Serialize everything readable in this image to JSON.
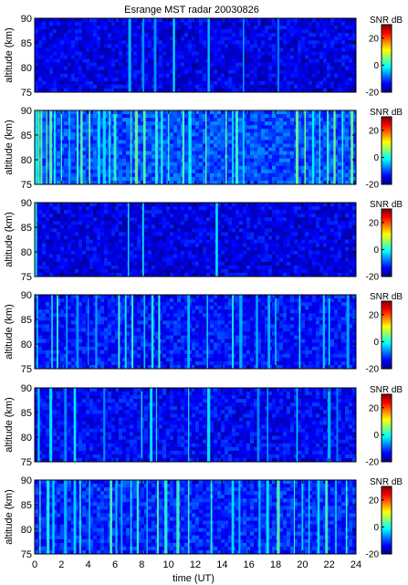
{
  "chart_data": {
    "type": "heatmap",
    "title": "Esrange MST radar 20030826",
    "xlabel": "time (UT)",
    "ylabel": "altitude (km)",
    "xlim": [
      0,
      24
    ],
    "ylim": [
      75,
      90
    ],
    "x_ticks": [
      0,
      2,
      4,
      6,
      8,
      10,
      12,
      14,
      16,
      18,
      20,
      22,
      24
    ],
    "y_ticks": [
      75,
      80,
      85,
      90
    ],
    "colorbar": {
      "label": "SNR dB",
      "range": [
        -20,
        30
      ],
      "ticks": [
        -20,
        0,
        20
      ],
      "colormap": "jet",
      "colors": [
        "#00007f",
        "#0000ff",
        "#007fff",
        "#00ffff",
        "#7fff7f",
        "#ffff00",
        "#ff7f00",
        "#ff0000",
        "#7f0000"
      ]
    },
    "panels": [
      {
        "panel": 1,
        "background_snr_db": -15,
        "spike_times_ut": [
          7.1,
          8.1,
          9.0,
          10.4,
          13.0,
          15.6,
          18.2
        ]
      },
      {
        "panel": 2,
        "background_snr_db": -10,
        "spike_times_ut": [
          0.1,
          0.3,
          0.5,
          0.9,
          1.2,
          1.5,
          2.0,
          2.6,
          3.2,
          3.5,
          4.1,
          4.8,
          5.2,
          5.6,
          6.0,
          7.2,
          7.6,
          8.2,
          9.1,
          9.5,
          10.0,
          11.1,
          11.6,
          12.8,
          14.3,
          14.8,
          15.1,
          15.6,
          19.6,
          20.2,
          20.8,
          21.3,
          21.9,
          22.4,
          23.0,
          23.7
        ]
      },
      {
        "panel": 3,
        "background_snr_db": -15,
        "spike_times_ut": [
          0.1,
          7.0,
          8.1,
          13.6
        ]
      },
      {
        "panel": 4,
        "background_snr_db": -13,
        "spike_times_ut": [
          0.2,
          1.3,
          1.7,
          2.4,
          3.2,
          4.0,
          4.6,
          6.3,
          6.8,
          7.3,
          8.2,
          8.8,
          9.3,
          11.5,
          12.9,
          14.8,
          15.4,
          16.6,
          17.5,
          18.0,
          19.8,
          21.6,
          22.0,
          23.4
        ]
      },
      {
        "panel": 5,
        "background_snr_db": -14,
        "spike_times_ut": [
          0.3,
          1.2,
          2.3,
          3.0,
          5.2,
          8.0,
          8.7,
          9.1,
          11.5,
          13.0,
          16.7,
          17.4,
          19.6,
          22.0,
          22.6
        ]
      },
      {
        "panel": 6,
        "background_snr_db": -12,
        "spike_times_ut": [
          0.4,
          1.0,
          1.4,
          2.3,
          3.0,
          3.4,
          4.1,
          5.7,
          6.1,
          6.5,
          7.2,
          7.7,
          8.4,
          9.2,
          9.8,
          10.7,
          11.5,
          13.2,
          14.8,
          15.3,
          16.8,
          17.4,
          18.2,
          19.4,
          20.0,
          20.5,
          21.2,
          21.8,
          22.5,
          23.3
        ]
      }
    ]
  }
}
